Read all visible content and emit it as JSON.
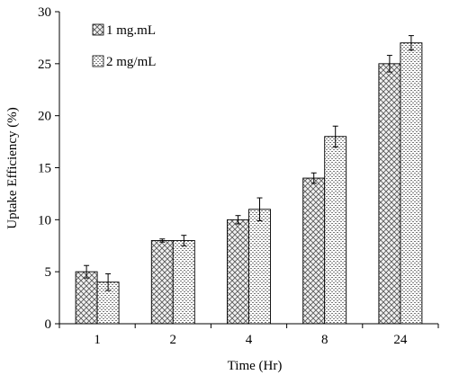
{
  "chart_data": {
    "type": "bar",
    "title": "",
    "xlabel": "Time (Hr)",
    "ylabel": "Uptake Efficiency (%)",
    "categories": [
      "1",
      "2",
      "4",
      "8",
      "24"
    ],
    "ylim": [
      0,
      30
    ],
    "yticks": [
      0,
      5,
      10,
      15,
      20,
      25,
      30
    ],
    "grid": false,
    "legend_position": "top-left",
    "series": [
      {
        "name": "1 mg.mL",
        "pattern": "crosshatch",
        "values": [
          5,
          8,
          10,
          14,
          25
        ],
        "errors": [
          0.6,
          0.15,
          0.4,
          0.5,
          0.8
        ]
      },
      {
        "name": "2 mg/mL",
        "pattern": "dotted",
        "values": [
          4,
          8,
          11,
          18,
          27
        ],
        "errors": [
          0.8,
          0.5,
          1.1,
          1.0,
          0.7
        ]
      }
    ]
  }
}
